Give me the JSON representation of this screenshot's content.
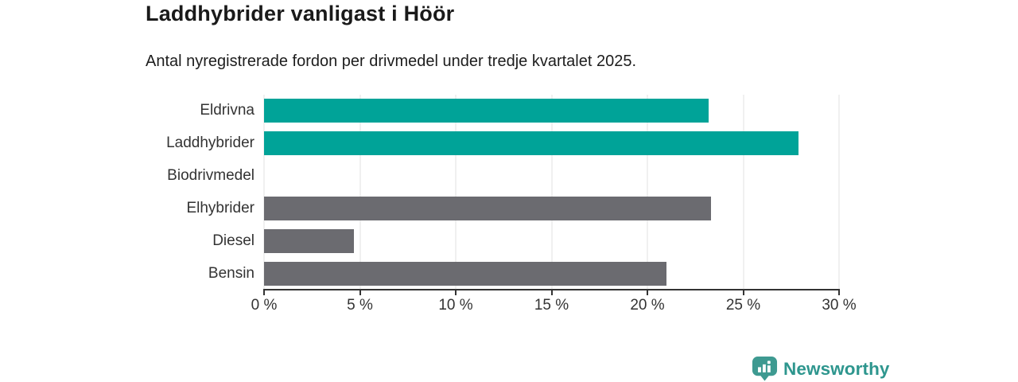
{
  "title": "Laddhybrider vanligast i Höör",
  "subtitle": "Antal nyregistrerade fordon per drivmedel under tredje kvartalet 2025.",
  "colors": {
    "teal": "#00A398",
    "gray": "#6B6B70",
    "gridline": "#e2e2e2",
    "axis": "#333333",
    "title_text": "#1a1a1a",
    "label_text": "#333333",
    "logo": "#2E968E"
  },
  "chart_data": {
    "type": "bar",
    "orientation": "horizontal",
    "title": "Laddhybrider vanligast i Höör",
    "subtitle": "Antal nyregistrerade fordon per drivmedel under tredje kvartalet 2025.",
    "categories": [
      "Eldrivna",
      "Laddhybrider",
      "Biodrivmedel",
      "Elhybrider",
      "Diesel",
      "Bensin"
    ],
    "values": [
      23.2,
      27.9,
      0,
      23.3,
      4.7,
      21.0
    ],
    "unit": "%",
    "bar_colors": [
      "#00A398",
      "#00A398",
      "#6B6B70",
      "#6B6B70",
      "#6B6B70",
      "#6B6B70"
    ],
    "xlim": [
      0,
      30
    ],
    "x_ticks": [
      "0 %",
      "5 %",
      "10 %",
      "15 %",
      "20 %",
      "25 %",
      "30 %"
    ],
    "grid": true,
    "legend": false
  },
  "footer": {
    "brand": "Newsworthy"
  }
}
